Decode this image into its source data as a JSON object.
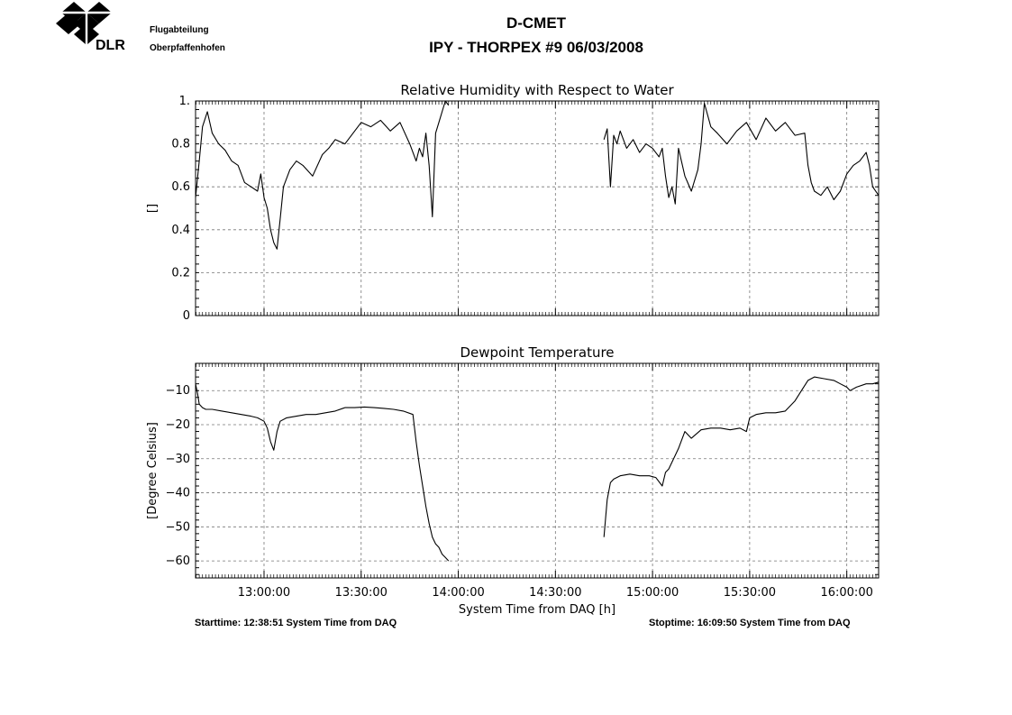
{
  "header": {
    "org_line1": "Flugabteilung",
    "org_line2": "Oberpfaffenhofen",
    "logo_text": "DLR",
    "title": "D-CMET",
    "subtitle": "IPY - THORPEX #9   06/03/2008"
  },
  "footer": {
    "starttime": "Starttime: 12:38:51 System Time from DAQ",
    "stoptime": "Stoptime: 16:09:50 System Time from DAQ"
  },
  "chart_data": [
    {
      "type": "line",
      "title": "Relative Humidity with Respect to Water",
      "ylabel": "[]",
      "xlabel": "",
      "xlim": [
        "12:38:51",
        "16:09:50"
      ],
      "ylim": [
        0,
        1
      ],
      "yticks": [
        0,
        0.2,
        0.4,
        0.6,
        0.8,
        1
      ],
      "yticklabels": [
        "0",
        "0.2",
        "0.4",
        "0.6",
        "0.8",
        "1."
      ],
      "xticks": [
        "13:00:00",
        "13:30:00",
        "14:00:00",
        "14:30:00",
        "15:00:00",
        "15:30:00",
        "16:00:00"
      ],
      "show_xticklabels": false,
      "grid": true,
      "series": [
        {
          "x": [
            "12:38:51",
            "12:40:00",
            "12:41:00",
            "12:42:30",
            "12:44:00",
            "12:46:00",
            "12:48:00",
            "12:50:00",
            "12:52:00",
            "12:54:00",
            "12:56:00",
            "12:58:00",
            "12:59:00",
            "13:00:00",
            "13:01:00",
            "13:02:00",
            "13:03:00",
            "13:04:00",
            "13:05:00",
            "13:06:00",
            "13:08:00",
            "13:10:00",
            "13:12:00",
            "13:15:00",
            "13:18:00",
            "13:20:00",
            "13:22:00",
            "13:25:00",
            "13:28:00",
            "13:30:00",
            "13:33:00",
            "13:36:00",
            "13:39:00",
            "13:42:00",
            "13:45:00",
            "13:47:00",
            "13:48:00",
            "13:49:00",
            "13:50:00",
            "13:51:00",
            "13:52:00",
            "13:53:00",
            "13:54:00",
            "13:55:00",
            "13:56:00",
            "13:57:00"
          ],
          "y": [
            0.55,
            0.72,
            0.88,
            0.95,
            0.85,
            0.8,
            0.77,
            0.72,
            0.7,
            0.62,
            0.6,
            0.58,
            0.66,
            0.55,
            0.5,
            0.4,
            0.34,
            0.31,
            0.45,
            0.6,
            0.68,
            0.72,
            0.7,
            0.65,
            0.75,
            0.78,
            0.82,
            0.8,
            0.86,
            0.9,
            0.88,
            0.91,
            0.86,
            0.9,
            0.8,
            0.72,
            0.78,
            0.74,
            0.85,
            0.7,
            0.46,
            0.85,
            0.9,
            0.95,
            1.0,
            0.98
          ]
        },
        {
          "x": [
            "14:45:00",
            "14:46:00",
            "14:47:00",
            "14:48:00",
            "14:49:00",
            "14:50:00",
            "14:52:00",
            "14:54:00",
            "14:56:00",
            "14:58:00",
            "15:00:00",
            "15:02:00",
            "15:03:00",
            "15:04:00",
            "15:05:00",
            "15:06:00",
            "15:07:00",
            "15:08:00",
            "15:10:00",
            "15:12:00",
            "15:14:00",
            "15:15:00",
            "15:16:00",
            "15:18:00",
            "15:20:00",
            "15:23:00",
            "15:26:00",
            "15:29:00",
            "15:32:00",
            "15:35:00",
            "15:38:00",
            "15:41:00",
            "15:44:00",
            "15:47:00",
            "15:48:00",
            "15:49:00",
            "15:50:00",
            "15:52:00",
            "15:54:00",
            "15:56:00",
            "15:58:00",
            "16:00:00",
            "16:02:00",
            "16:04:00",
            "16:06:00",
            "16:07:00",
            "16:08:00",
            "16:09:50"
          ],
          "y": [
            0.82,
            0.87,
            0.6,
            0.84,
            0.8,
            0.86,
            0.78,
            0.82,
            0.76,
            0.8,
            0.78,
            0.74,
            0.78,
            0.65,
            0.55,
            0.6,
            0.52,
            0.78,
            0.65,
            0.58,
            0.68,
            0.8,
            0.99,
            0.88,
            0.85,
            0.8,
            0.86,
            0.9,
            0.82,
            0.92,
            0.86,
            0.9,
            0.84,
            0.85,
            0.7,
            0.62,
            0.58,
            0.56,
            0.6,
            0.54,
            0.58,
            0.66,
            0.7,
            0.72,
            0.76,
            0.7,
            0.6,
            0.56
          ]
        }
      ]
    },
    {
      "type": "line",
      "title": "Dewpoint Temperature",
      "ylabel": "[Degree Celsius]",
      "xlabel": "System Time from DAQ [h]",
      "xlim": [
        "12:38:51",
        "16:09:50"
      ],
      "ylim": [
        -65,
        -2
      ],
      "yticks": [
        -60,
        -50,
        -40,
        -30,
        -20,
        -10
      ],
      "yticklabels": [
        "−60",
        "−50",
        "−40",
        "−30",
        "−20",
        "−10"
      ],
      "xticks": [
        "13:00:00",
        "13:30:00",
        "14:00:00",
        "14:30:00",
        "15:00:00",
        "15:30:00",
        "16:00:00"
      ],
      "xticklabels": [
        "13:00:00",
        "13:30:00",
        "14:00:00",
        "14:30:00",
        "15:00:00",
        "15:30:00",
        "16:00:00"
      ],
      "show_xticklabels": true,
      "grid": true,
      "series": [
        {
          "x": [
            "12:38:51",
            "12:39:30",
            "12:40:00",
            "12:41:00",
            "12:42:00",
            "12:44:00",
            "12:47:00",
            "12:50:00",
            "12:53:00",
            "12:56:00",
            "12:58:00",
            "13:00:00",
            "13:01:00",
            "13:02:00",
            "13:03:00",
            "13:04:00",
            "13:05:00",
            "13:07:00",
            "13:10:00",
            "13:13:00",
            "13:16:00",
            "13:19:00",
            "13:22:00",
            "13:25:00",
            "13:28:00",
            "13:31:00",
            "13:34:00",
            "13:37:00",
            "13:40:00",
            "13:43:00",
            "13:46:00",
            "13:47:00",
            "13:48:00",
            "13:49:00",
            "13:50:00",
            "13:51:00",
            "13:52:00",
            "13:53:00",
            "13:54:00",
            "13:55:00",
            "13:56:00",
            "13:57:00"
          ],
          "y": [
            -8,
            -11,
            -14,
            -15,
            -15.5,
            -15.5,
            -16,
            -16.5,
            -17,
            -17.5,
            -18,
            -19,
            -21,
            -25,
            -27.5,
            -22,
            -19,
            -18,
            -17.5,
            -17,
            -17,
            -16.5,
            -16,
            -15,
            -15,
            -14.8,
            -15,
            -15.2,
            -15.5,
            -16,
            -17,
            -25,
            -32,
            -38,
            -44,
            -49,
            -53,
            -55,
            -56,
            -58,
            -59,
            -60
          ]
        },
        {
          "x": [
            "14:45:00",
            "14:46:00",
            "14:47:00",
            "14:48:00",
            "14:50:00",
            "14:53:00",
            "14:56:00",
            "14:59:00",
            "15:01:00",
            "15:03:00",
            "15:04:00",
            "15:05:00",
            "15:07:00",
            "15:08:00",
            "15:10:00",
            "15:12:00",
            "15:15:00",
            "15:18:00",
            "15:21:00",
            "15:24:00",
            "15:27:00",
            "15:29:00",
            "15:30:00",
            "15:32:00",
            "15:35:00",
            "15:38:00",
            "15:41:00",
            "15:44:00",
            "15:46:00",
            "15:48:00",
            "15:50:00",
            "15:53:00",
            "15:56:00",
            "15:58:00",
            "16:00:00",
            "16:01:00",
            "16:03:00",
            "16:06:00",
            "16:08:00",
            "16:09:50"
          ],
          "y": [
            -53,
            -42,
            -37,
            -36,
            -35,
            -34.5,
            -35,
            -35,
            -35.5,
            -38,
            -34,
            -33,
            -29,
            -27,
            -22,
            -24,
            -21.5,
            -21,
            -21,
            -21.5,
            -21,
            -22,
            -18,
            -17,
            -16.5,
            -16.5,
            -16,
            -13,
            -10,
            -7,
            -6,
            -6.5,
            -7,
            -8,
            -9,
            -10,
            -9,
            -8,
            -8,
            -7.5
          ]
        }
      ]
    }
  ]
}
